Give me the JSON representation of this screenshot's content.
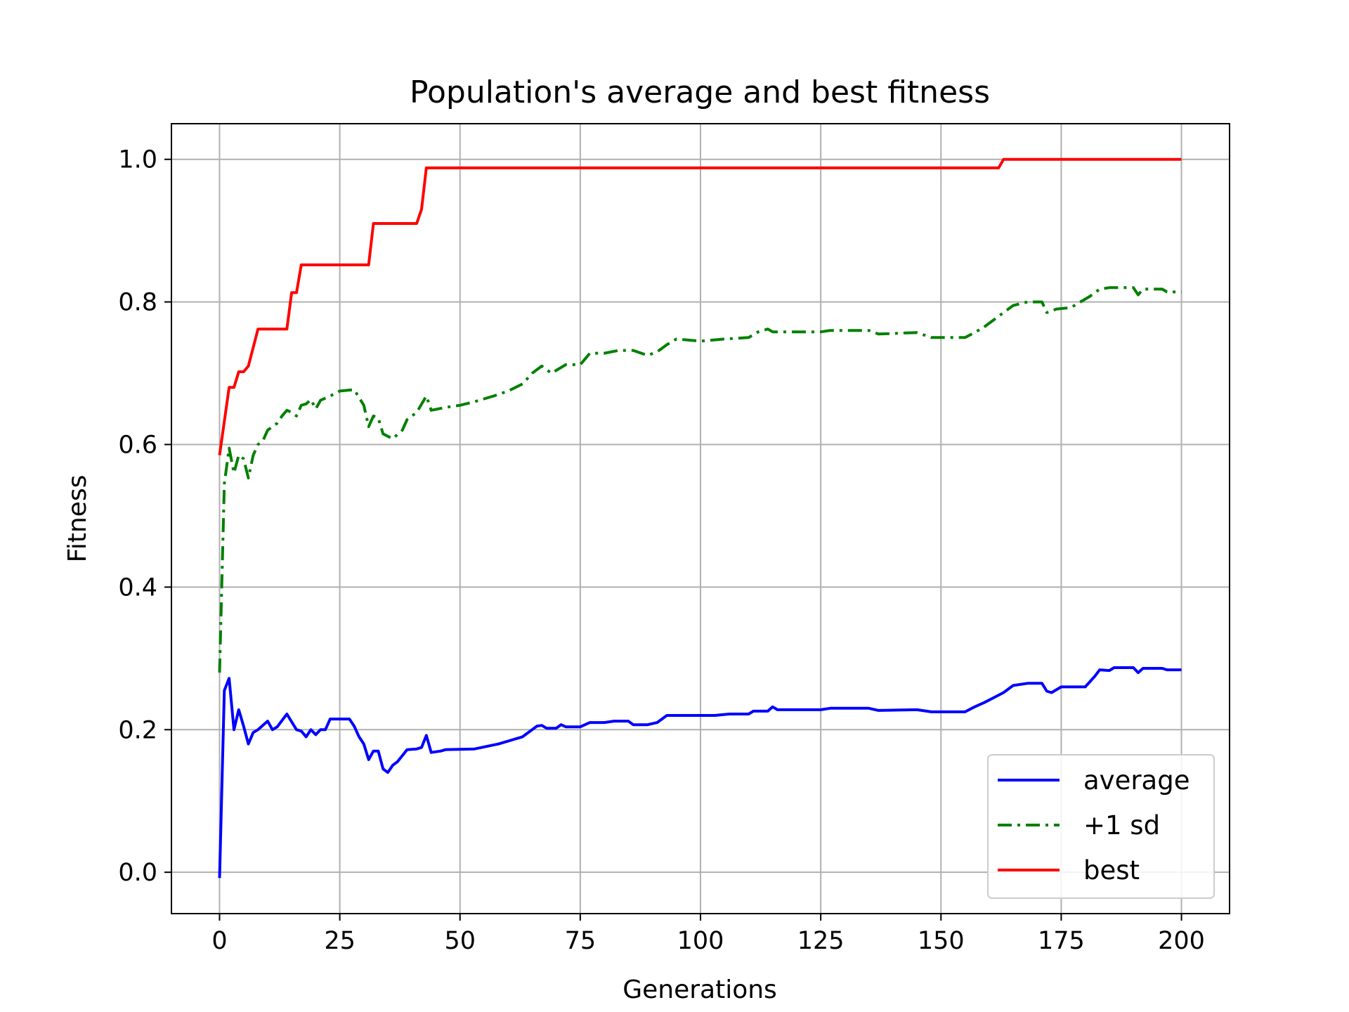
{
  "chart_data": {
    "type": "line",
    "title": "Population's average and best fitness",
    "xlabel": "Generations",
    "ylabel": "Fitness",
    "xlim": [
      -10,
      210
    ],
    "ylim": [
      -0.058,
      1.05
    ],
    "xticks": [
      0,
      25,
      50,
      75,
      100,
      125,
      150,
      175,
      200
    ],
    "yticks": [
      0.0,
      0.2,
      0.4,
      0.6,
      0.8,
      1.0
    ],
    "xtick_labels": [
      "0",
      "25",
      "50",
      "75",
      "100",
      "125",
      "150",
      "175",
      "200"
    ],
    "ytick_labels": [
      "0.0",
      "0.2",
      "0.4",
      "0.6",
      "0.8",
      "1.0"
    ],
    "grid": true,
    "legend_position": "lower-right",
    "series": [
      {
        "name": "average",
        "color": "#0000ff",
        "style": "solid",
        "points": [
          [
            0,
            -0.008
          ],
          [
            1,
            0.255
          ],
          [
            2,
            0.272
          ],
          [
            3,
            0.2
          ],
          [
            4,
            0.228
          ],
          [
            5,
            0.205
          ],
          [
            6,
            0.18
          ],
          [
            7,
            0.196
          ],
          [
            8,
            0.2
          ],
          [
            10,
            0.212
          ],
          [
            11,
            0.2
          ],
          [
            12,
            0.204
          ],
          [
            14,
            0.222
          ],
          [
            16,
            0.2
          ],
          [
            17,
            0.198
          ],
          [
            18,
            0.19
          ],
          [
            19,
            0.2
          ],
          [
            20,
            0.193
          ],
          [
            21,
            0.2
          ],
          [
            22,
            0.2
          ],
          [
            23,
            0.215
          ],
          [
            25,
            0.215
          ],
          [
            27,
            0.215
          ],
          [
            28,
            0.205
          ],
          [
            29,
            0.19
          ],
          [
            30,
            0.18
          ],
          [
            31,
            0.158
          ],
          [
            32,
            0.17
          ],
          [
            33,
            0.17
          ],
          [
            34,
            0.145
          ],
          [
            35,
            0.14
          ],
          [
            36,
            0.15
          ],
          [
            37,
            0.155
          ],
          [
            39,
            0.172
          ],
          [
            41,
            0.173
          ],
          [
            42,
            0.175
          ],
          [
            43,
            0.192
          ],
          [
            44,
            0.168
          ],
          [
            46,
            0.17
          ],
          [
            47,
            0.172
          ],
          [
            53,
            0.173
          ],
          [
            58,
            0.18
          ],
          [
            61,
            0.186
          ],
          [
            63,
            0.19
          ],
          [
            66,
            0.205
          ],
          [
            67,
            0.206
          ],
          [
            68,
            0.202
          ],
          [
            70,
            0.202
          ],
          [
            71,
            0.207
          ],
          [
            72,
            0.204
          ],
          [
            75,
            0.204
          ],
          [
            77,
            0.21
          ],
          [
            80,
            0.21
          ],
          [
            82,
            0.212
          ],
          [
            85,
            0.212
          ],
          [
            86,
            0.207
          ],
          [
            89,
            0.207
          ],
          [
            91,
            0.21
          ],
          [
            93,
            0.22
          ],
          [
            96,
            0.22
          ],
          [
            100,
            0.22
          ],
          [
            103,
            0.22
          ],
          [
            106,
            0.222
          ],
          [
            110,
            0.222
          ],
          [
            111,
            0.226
          ],
          [
            114,
            0.226
          ],
          [
            115,
            0.232
          ],
          [
            116,
            0.228
          ],
          [
            125,
            0.228
          ],
          [
            127,
            0.23
          ],
          [
            135,
            0.23
          ],
          [
            137,
            0.227
          ],
          [
            145,
            0.228
          ],
          [
            148,
            0.225
          ],
          [
            155,
            0.225
          ],
          [
            157,
            0.232
          ],
          [
            159,
            0.238
          ],
          [
            161,
            0.245
          ],
          [
            163,
            0.252
          ],
          [
            165,
            0.262
          ],
          [
            168,
            0.265
          ],
          [
            171,
            0.265
          ],
          [
            172,
            0.254
          ],
          [
            173,
            0.252
          ],
          [
            175,
            0.26
          ],
          [
            180,
            0.26
          ],
          [
            182,
            0.275
          ],
          [
            183,
            0.284
          ],
          [
            185,
            0.283
          ],
          [
            186,
            0.287
          ],
          [
            190,
            0.287
          ],
          [
            191,
            0.28
          ],
          [
            192,
            0.286
          ],
          [
            196,
            0.286
          ],
          [
            197,
            0.284
          ],
          [
            200,
            0.284
          ]
        ]
      },
      {
        "name": "+1 sd",
        "color": "#008000",
        "style": "dashdot",
        "points": [
          [
            0,
            0.28
          ],
          [
            1,
            0.545
          ],
          [
            2,
            0.595
          ],
          [
            3,
            0.56
          ],
          [
            4,
            0.585
          ],
          [
            5,
            0.58
          ],
          [
            6,
            0.553
          ],
          [
            7,
            0.585
          ],
          [
            8,
            0.6
          ],
          [
            9,
            0.605
          ],
          [
            10,
            0.62
          ],
          [
            12,
            0.63
          ],
          [
            13,
            0.64
          ],
          [
            14,
            0.648
          ],
          [
            15,
            0.645
          ],
          [
            16,
            0.64
          ],
          [
            17,
            0.655
          ],
          [
            18,
            0.657
          ],
          [
            19,
            0.663
          ],
          [
            20,
            0.65
          ],
          [
            21,
            0.662
          ],
          [
            23,
            0.668
          ],
          [
            25,
            0.675
          ],
          [
            28,
            0.677
          ],
          [
            30,
            0.655
          ],
          [
            31,
            0.625
          ],
          [
            32,
            0.64
          ],
          [
            33,
            0.637
          ],
          [
            34,
            0.615
          ],
          [
            36,
            0.608
          ],
          [
            38,
            0.62
          ],
          [
            39,
            0.635
          ],
          [
            41,
            0.645
          ],
          [
            43,
            0.668
          ],
          [
            44,
            0.648
          ],
          [
            47,
            0.652
          ],
          [
            50,
            0.655
          ],
          [
            53,
            0.66
          ],
          [
            57,
            0.668
          ],
          [
            60,
            0.675
          ],
          [
            63,
            0.685
          ],
          [
            65,
            0.7
          ],
          [
            67,
            0.71
          ],
          [
            69,
            0.7
          ],
          [
            72,
            0.712
          ],
          [
            75,
            0.712
          ],
          [
            77,
            0.728
          ],
          [
            80,
            0.728
          ],
          [
            83,
            0.732
          ],
          [
            86,
            0.732
          ],
          [
            89,
            0.725
          ],
          [
            91,
            0.73
          ],
          [
            93,
            0.74
          ],
          [
            95,
            0.748
          ],
          [
            100,
            0.745
          ],
          [
            105,
            0.748
          ],
          [
            110,
            0.75
          ],
          [
            112,
            0.758
          ],
          [
            114,
            0.762
          ],
          [
            115,
            0.758
          ],
          [
            125,
            0.758
          ],
          [
            127,
            0.76
          ],
          [
            135,
            0.76
          ],
          [
            137,
            0.755
          ],
          [
            145,
            0.757
          ],
          [
            148,
            0.75
          ],
          [
            155,
            0.75
          ],
          [
            157,
            0.757
          ],
          [
            159,
            0.765
          ],
          [
            161,
            0.775
          ],
          [
            163,
            0.785
          ],
          [
            165,
            0.795
          ],
          [
            168,
            0.8
          ],
          [
            171,
            0.8
          ],
          [
            172,
            0.785
          ],
          [
            174,
            0.79
          ],
          [
            177,
            0.792
          ],
          [
            179,
            0.8
          ],
          [
            181,
            0.808
          ],
          [
            183,
            0.818
          ],
          [
            185,
            0.82
          ],
          [
            190,
            0.82
          ],
          [
            191,
            0.81
          ],
          [
            192,
            0.818
          ],
          [
            196,
            0.818
          ],
          [
            197,
            0.814
          ],
          [
            200,
            0.814
          ]
        ]
      },
      {
        "name": "best",
        "color": "#ff0000",
        "style": "solid",
        "points": [
          [
            0,
            0.585
          ],
          [
            2,
            0.68
          ],
          [
            3,
            0.68
          ],
          [
            4,
            0.702
          ],
          [
            5,
            0.702
          ],
          [
            6,
            0.71
          ],
          [
            8,
            0.762
          ],
          [
            14,
            0.762
          ],
          [
            15,
            0.813
          ],
          [
            16,
            0.813
          ],
          [
            17,
            0.852
          ],
          [
            31,
            0.852
          ],
          [
            32,
            0.91
          ],
          [
            41,
            0.91
          ],
          [
            42,
            0.93
          ],
          [
            43,
            0.988
          ],
          [
            162,
            0.988
          ],
          [
            163,
            1.0
          ],
          [
            200,
            1.0
          ]
        ]
      }
    ]
  }
}
